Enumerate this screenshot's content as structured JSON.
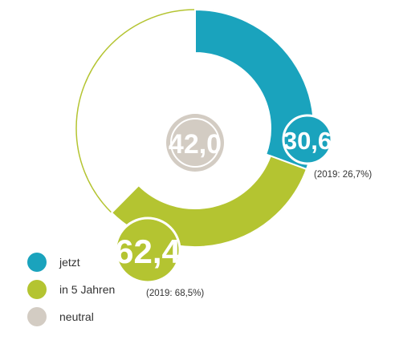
{
  "colors": {
    "jetzt": "#1aa3bd",
    "in5": "#b4c431",
    "neutral": "#d3ccc3",
    "background": "#ffffff"
  },
  "chart_data": {
    "type": "pie",
    "style": "donut",
    "series": [
      {
        "name": "jetzt",
        "value": 30.6,
        "label": "30,6",
        "comparison": "(2019: 26,7%)",
        "color": "#1aa3bd"
      },
      {
        "name": "in 5 Jahren",
        "value": 62.4,
        "label": "62,4",
        "comparison": "(2019: 68,5%)",
        "color": "#b4c431"
      },
      {
        "name": "neutral",
        "value": 42.0,
        "label": "42,0",
        "color": "#d3ccc3"
      }
    ],
    "legend": {
      "position": "bottom-left",
      "items": [
        {
          "label": "jetzt",
          "color": "#1aa3bd"
        },
        {
          "label": "in 5 Jahren",
          "color": "#b4c431"
        },
        {
          "label": "neutral",
          "color": "#d3ccc3"
        }
      ]
    }
  }
}
